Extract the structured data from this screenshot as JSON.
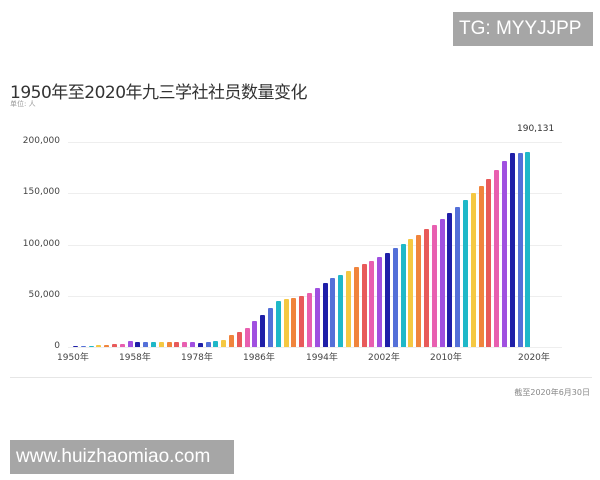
{
  "watermarks": {
    "top": "TG: MYYJJPP",
    "bottom": "www.huizhaomiao.com"
  },
  "title": "1950年至2020年九三学社社员数量变化",
  "unit": "单位: 人",
  "note": "截至2020年6月30日",
  "peak_label": "190,131",
  "colors": [
    "#1f1fa8",
    "#5470d8",
    "#1fb8c8",
    "#f5c842",
    "#f0843c",
    "#e85a5a",
    "#e85fb0",
    "#a050e0"
  ],
  "chart_data": {
    "type": "bar",
    "title": "1950年至2020年九三学社社员数量变化",
    "subtitle": "单位: 人",
    "xlabel": "",
    "ylabel": "人",
    "ylim": [
      0,
      200000
    ],
    "yticks": [
      "0",
      "50,000",
      "100,000",
      "150,000",
      "200,000"
    ],
    "xtick_labels": [
      "1950年",
      "1958年",
      "1978年",
      "1986年",
      "1994年",
      "2002年",
      "2010年",
      "2020年"
    ],
    "grid": true,
    "annotation": {
      "label": "190,131",
      "category": "2020"
    },
    "categories": [
      "1950",
      "1951",
      "1952",
      "1953",
      "1954",
      "1955",
      "1956",
      "1957",
      "1958",
      "1959",
      "1960",
      "1961",
      "1962",
      "1963",
      "1964",
      "1965",
      "1978",
      "1979",
      "1980",
      "1981",
      "1982",
      "1983",
      "1984",
      "1985",
      "1986",
      "1987",
      "1988",
      "1989",
      "1990",
      "1991",
      "1992",
      "1993",
      "1994",
      "1995",
      "1996",
      "1997",
      "1998",
      "1999",
      "2000",
      "2001",
      "2002",
      "2003",
      "2004",
      "2005",
      "2006",
      "2007",
      "2008",
      "2009",
      "2010",
      "2011",
      "2012",
      "2013",
      "2014",
      "2015",
      "2016",
      "2017",
      "2018",
      "2019",
      "2020"
    ],
    "values": [
      300,
      500,
      1000,
      1500,
      2000,
      2500,
      3300,
      5500,
      5000,
      5000,
      5000,
      5000,
      5000,
      5000,
      5000,
      5000,
      4000,
      4600,
      6000,
      6500,
      11400,
      14300,
      19000,
      25000,
      31600,
      38500,
      44700,
      46600,
      48000,
      49600,
      53000,
      57700,
      62600,
      67000,
      70000,
      74300,
      78200,
      81200,
      84000,
      88000,
      92000,
      96500,
      100700,
      105000,
      109500,
      114700,
      119300,
      125000,
      130400,
      137000,
      143000,
      150000,
      156800,
      164000,
      172800,
      181600,
      189000,
      189400,
      190131
    ]
  }
}
